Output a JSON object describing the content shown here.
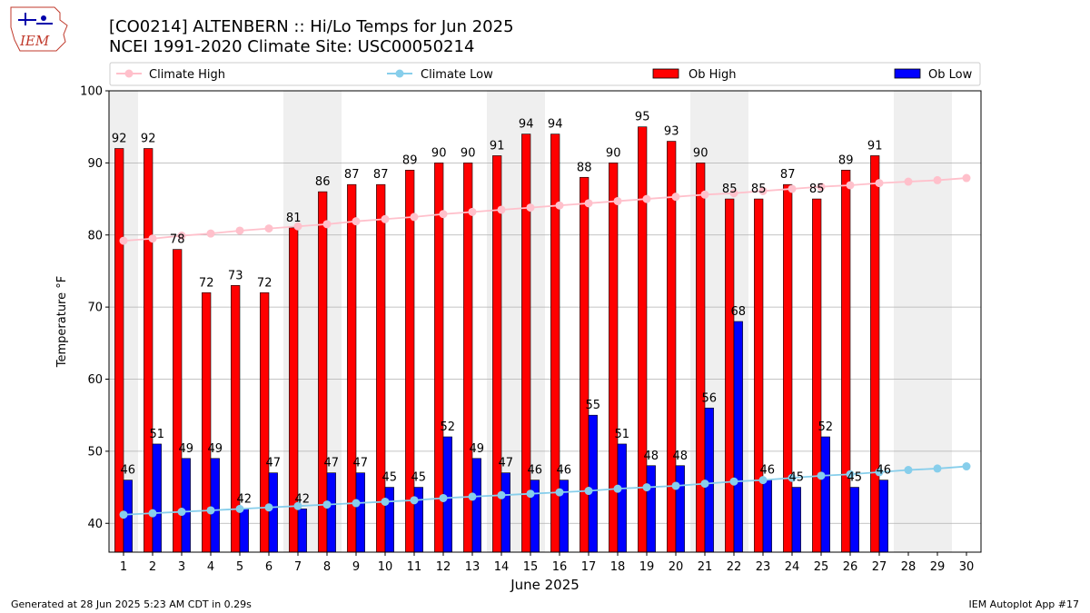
{
  "title": "[CO0214] ALTENBERN :: Hi/Lo Temps for Jun 2025",
  "subtitle": "NCEI 1991-2020 Climate Site: USC00050214",
  "logo_text": "IEM",
  "footer_left": "Generated at 28 Jun 2025 5:23 AM CDT in 0.29s",
  "footer_right": "IEM Autoplot App #17",
  "colors": {
    "ob_high": "#ff0000",
    "ob_low": "#0000ff",
    "climate_high": "#ffc0cb",
    "climate_low": "#87ceeb",
    "weekend_shade": "#efefef"
  },
  "chart_data": {
    "type": "bar",
    "xlabel": "June 2025",
    "ylabel": "Temperature °F",
    "ylim": [
      36,
      100
    ],
    "yticks": [
      40,
      50,
      60,
      70,
      80,
      90,
      100
    ],
    "grid": "horizontal",
    "legend_placement": "top",
    "categories": [
      "1",
      "2",
      "3",
      "4",
      "5",
      "6",
      "7",
      "8",
      "9",
      "10",
      "11",
      "12",
      "13",
      "14",
      "15",
      "16",
      "17",
      "18",
      "19",
      "20",
      "21",
      "22",
      "23",
      "24",
      "25",
      "26",
      "27",
      "28",
      "29",
      "30"
    ],
    "shaded_days": [
      1,
      7,
      8,
      14,
      15,
      21,
      22,
      28,
      29
    ],
    "series": [
      {
        "name": "Ob High",
        "kind": "bar",
        "values": [
          92,
          92,
          78,
          72,
          73,
          72,
          81,
          86,
          87,
          87,
          89,
          90,
          90,
          91,
          94,
          94,
          88,
          90,
          95,
          93,
          90,
          85,
          85,
          87,
          85,
          89,
          91,
          null,
          null,
          null
        ]
      },
      {
        "name": "Ob Low",
        "kind": "bar",
        "values": [
          46,
          51,
          49,
          49,
          42,
          47,
          42,
          47,
          47,
          45,
          45,
          52,
          49,
          47,
          46,
          46,
          55,
          51,
          48,
          48,
          56,
          68,
          46,
          45,
          52,
          45,
          46,
          null,
          null,
          null
        ]
      },
      {
        "name": "Climate High",
        "kind": "line",
        "values": [
          79.2,
          79.5,
          79.9,
          80.2,
          80.6,
          80.9,
          81.2,
          81.5,
          81.9,
          82.2,
          82.5,
          82.9,
          83.2,
          83.5,
          83.8,
          84.1,
          84.4,
          84.7,
          85.0,
          85.3,
          85.6,
          85.8,
          86.1,
          86.4,
          86.7,
          86.9,
          87.2,
          87.4,
          87.6,
          87.9
        ]
      },
      {
        "name": "Climate Low",
        "kind": "line",
        "values": [
          41.2,
          41.4,
          41.6,
          41.8,
          42.0,
          42.2,
          42.4,
          42.6,
          42.8,
          43.0,
          43.2,
          43.5,
          43.7,
          43.9,
          44.1,
          44.3,
          44.5,
          44.8,
          45.0,
          45.2,
          45.5,
          45.8,
          46.0,
          46.3,
          46.6,
          46.8,
          47.1,
          47.4,
          47.6,
          47.9
        ]
      }
    ]
  }
}
